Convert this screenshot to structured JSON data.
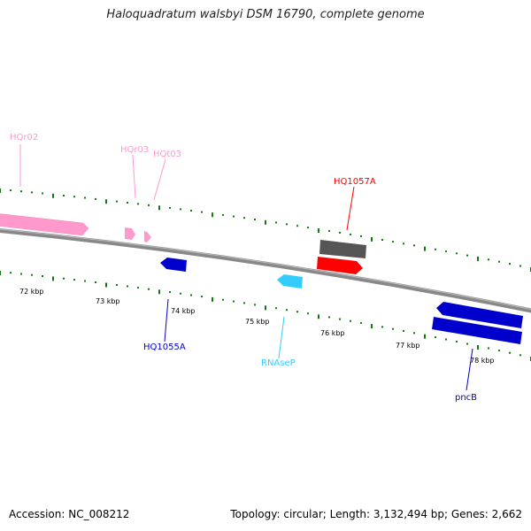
{
  "title": "Haloquadratum walsbyi DSM 16790, complete genome",
  "footer": {
    "accession": "Accession: NC_008212",
    "summary": "Topology: circular; Length: 3,132,494 bp; Genes: 2,662"
  },
  "scale": {
    "labels": [
      "72 kbp",
      "73 kbp",
      "74 kbp",
      "75 kbp",
      "76 kbp",
      "77 kbp",
      "78 kbp"
    ]
  },
  "features": {
    "hqr02": "HQr02",
    "hqr03": "HQr03",
    "hqt03": "HQt03",
    "hq1057a": "HQ1057A",
    "hq1055a": "HQ1055A",
    "rnasep": "RNAseP",
    "pncb": "pncB"
  },
  "colors": {
    "rrna": "#ff99cc",
    "trna": "#ff99cc",
    "cds_forward": "#ff0000",
    "cds_reverse": "#0000cc",
    "misc_rna": "#33ccff",
    "gene": "#555555",
    "ticks": "#117711"
  }
}
